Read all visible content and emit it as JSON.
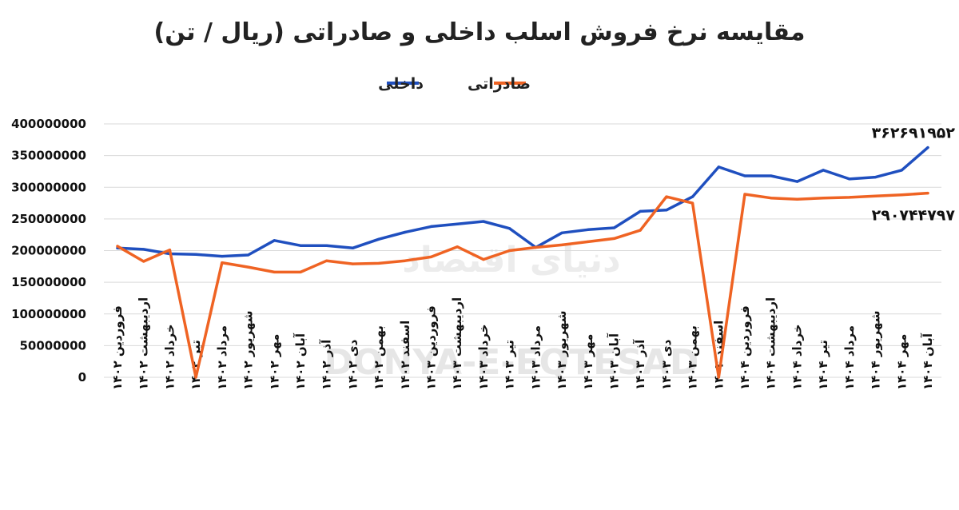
{
  "chart_data": {
    "type": "line",
    "title": "مقایسه نرخ فروش اسلب داخلی و صادراتی (ریال / تن)",
    "xlabel": "",
    "ylabel": "",
    "ylim": [
      0,
      400000000
    ],
    "yticks": [
      {
        "value": 0,
        "label": "0"
      },
      {
        "value": 50000000,
        "label": "50000000"
      },
      {
        "value": 100000000,
        "label": "100000000"
      },
      {
        "value": 150000000,
        "label": "150000000"
      },
      {
        "value": 200000000,
        "label": "200000000"
      },
      {
        "value": 250000000,
        "label": "250000000"
      },
      {
        "value": 300000000,
        "label": "300000000"
      },
      {
        "value": 350000000,
        "label": "350000000"
      },
      {
        "value": 400000000,
        "label": "400000000"
      }
    ],
    "grid": true,
    "legend": "top-center",
    "categories": [
      "فروردین ۱۴۰۲",
      "اردیبهشت ۱۴۰۲",
      "خرداد ۱۴۰۲",
      "تیر ۱۴۰۲",
      "مرداد ۱۴۰۲",
      "شهریور ۱۴۰۲",
      "مهر ۱۴۰۲",
      "آبان ۱۴۰۲",
      "آذر ۱۴۰۲",
      "دی ۱۴۰۲",
      "بهمن ۱۴۰۲",
      "اسفند ۱۴۰۲",
      "فروردین ۱۴۰۳",
      "اردیبهشت ۱۴۰۳",
      "خرداد ۱۴۰۳",
      "تیر ۱۴۰۳",
      "مرداد ۱۴۰۳",
      "شهریور ۱۴۰۳",
      "مهر ۱۴۰۳",
      "آبان ۱۴۰۳",
      "آذر ۱۴۰۳",
      "دی ۱۴۰۳",
      "بهمن ۱۴۰۳",
      "اسفند ۱۴۰۳",
      "فروردین ۱۴۰۴",
      "اردیبهشت ۱۴۰۴",
      "خرداد ۱۴۰۴",
      "تیر ۱۴۰۴",
      "مرداد ۱۴۰۴",
      "شهریور ۱۴۰۴",
      "مهر ۱۴۰۴",
      "آبان ۱۴۰۴"
    ],
    "series": [
      {
        "name": "داخلی",
        "color": "#1f4fbf",
        "values": [
          204000000,
          202000000,
          195000000,
          194000000,
          191000000,
          193000000,
          216000000,
          208000000,
          208000000,
          204000000,
          218000000,
          229000000,
          238000000,
          242000000,
          246000000,
          235000000,
          205000000,
          228000000,
          233000000,
          236000000,
          262000000,
          264000000,
          285000000,
          332000000,
          318000000,
          318000000,
          309000000,
          327000000,
          313000000,
          316000000,
          327000000,
          362691952
        ]
      },
      {
        "name": "صادراتی",
        "color": "#ef6323",
        "values": [
          207000000,
          183000000,
          201000000,
          0,
          181000000,
          174000000,
          166000000,
          166000000,
          184000000,
          179000000,
          180000000,
          184000000,
          190000000,
          206000000,
          186000000,
          200000000,
          205000000,
          209000000,
          214000000,
          219000000,
          232000000,
          285000000,
          275000000,
          0,
          289000000,
          283000000,
          281000000,
          283000000,
          284000000,
          286000000,
          288000000,
          290744797
        ]
      }
    ],
    "annotations": [
      {
        "series": "داخلی",
        "index": 31,
        "text": "۳۶۲۶۹۱۹۵۲"
      },
      {
        "series": "صادراتی",
        "index": 31,
        "text": "۲۹۰۷۴۴۷۹۷"
      }
    ]
  },
  "watermark": {
    "latin": "DONYA-E-EQTESAD",
    "persian": "دنیای اقتصاد"
  }
}
